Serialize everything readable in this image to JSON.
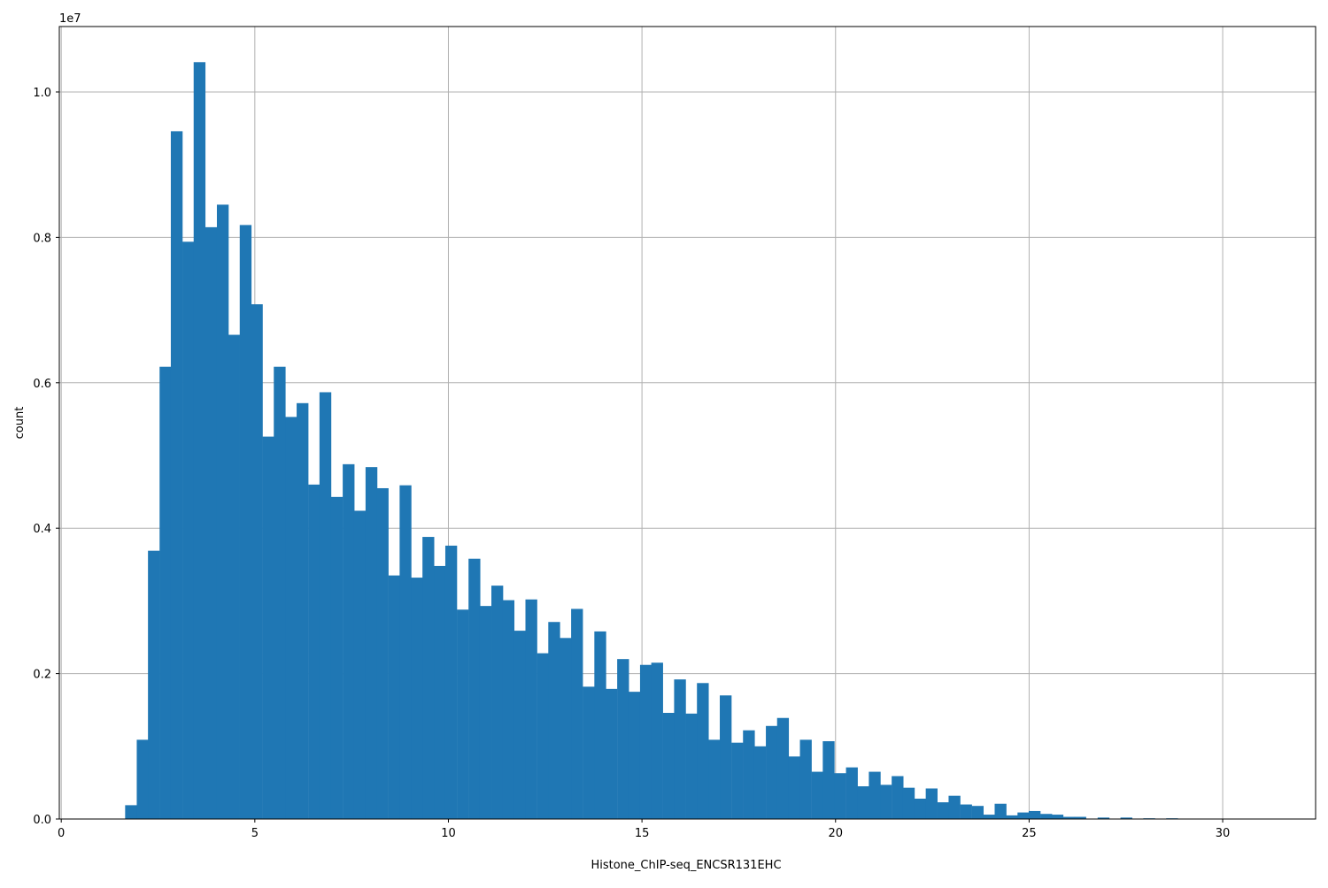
{
  "chart_data": {
    "type": "bar",
    "title": "",
    "xlabel": "Histone_ChIP-seq_ENCSR131EHC",
    "ylabel": "count",
    "y_offset_label": "1e7",
    "bin_width": 0.2956,
    "x": [
      1.65,
      1.95,
      2.24,
      2.54,
      2.83,
      3.13,
      3.42,
      3.72,
      4.02,
      4.31,
      4.61,
      4.9,
      5.2,
      5.49,
      5.79,
      6.08,
      6.38,
      6.67,
      6.97,
      7.27,
      7.56,
      7.86,
      8.15,
      8.45,
      8.74,
      9.04,
      9.33,
      9.63,
      9.92,
      10.22,
      10.52,
      10.81,
      11.11,
      11.4,
      11.7,
      11.99,
      12.29,
      12.58,
      12.88,
      13.17,
      13.47,
      13.77,
      14.06,
      14.36,
      14.65,
      14.95,
      15.24,
      15.54,
      15.83,
      16.13,
      16.42,
      16.72,
      17.01,
      17.31,
      17.61,
      17.9,
      18.2,
      18.49,
      18.79,
      19.08,
      19.38,
      19.67,
      19.97,
      20.27,
      20.56,
      20.86,
      21.15,
      21.45,
      21.74,
      22.04,
      22.33,
      22.63,
      22.92,
      23.22,
      23.52,
      23.81,
      24.11,
      24.4,
      24.7,
      24.99,
      25.29,
      25.58,
      25.88,
      26.17,
      26.47,
      26.77,
      27.06,
      27.36,
      27.65,
      27.95,
      28.24,
      28.54
    ],
    "values": [
      190000,
      1090000,
      3690000,
      6220000,
      9460000,
      7940000,
      10410000,
      8140000,
      8450000,
      6660000,
      8170000,
      7080000,
      5260000,
      6220000,
      5530000,
      5720000,
      4600000,
      5870000,
      4430000,
      4880000,
      4240000,
      4840000,
      4550000,
      3350000,
      4590000,
      3320000,
      3880000,
      3480000,
      3760000,
      2880000,
      3580000,
      2930000,
      3210000,
      3010000,
      2590000,
      3020000,
      2280000,
      2710000,
      2490000,
      2890000,
      1820000,
      2580000,
      1790000,
      2200000,
      1750000,
      2120000,
      2150000,
      1460000,
      1920000,
      1450000,
      1870000,
      1090000,
      1700000,
      1050000,
      1220000,
      1000000,
      1280000,
      1390000,
      860000,
      1090000,
      650000,
      1070000,
      630000,
      710000,
      450000,
      650000,
      470000,
      590000,
      430000,
      280000,
      420000,
      230000,
      320000,
      200000,
      180000,
      60000,
      210000,
      50000,
      90000,
      110000,
      70000,
      60000,
      30000,
      30000,
      0,
      20000,
      0,
      20000,
      0,
      10000,
      0,
      10000
    ],
    "xlim": [
      -0.05,
      32.4
    ],
    "ylim": [
      0,
      10900000
    ],
    "xticks": [
      0,
      5,
      10,
      15,
      20,
      25,
      30
    ],
    "xtick_labels": [
      "0",
      "5",
      "10",
      "15",
      "20",
      "25",
      "30"
    ],
    "yticks": [
      0,
      2000000,
      4000000,
      6000000,
      8000000,
      10000000
    ],
    "ytick_labels": [
      "0.0",
      "0.2",
      "0.4",
      "0.6",
      "0.8",
      "1.0"
    ],
    "bar_color": "#1f77b4",
    "grid": true,
    "grid_color": "#b0b0b0",
    "legend": "none"
  }
}
